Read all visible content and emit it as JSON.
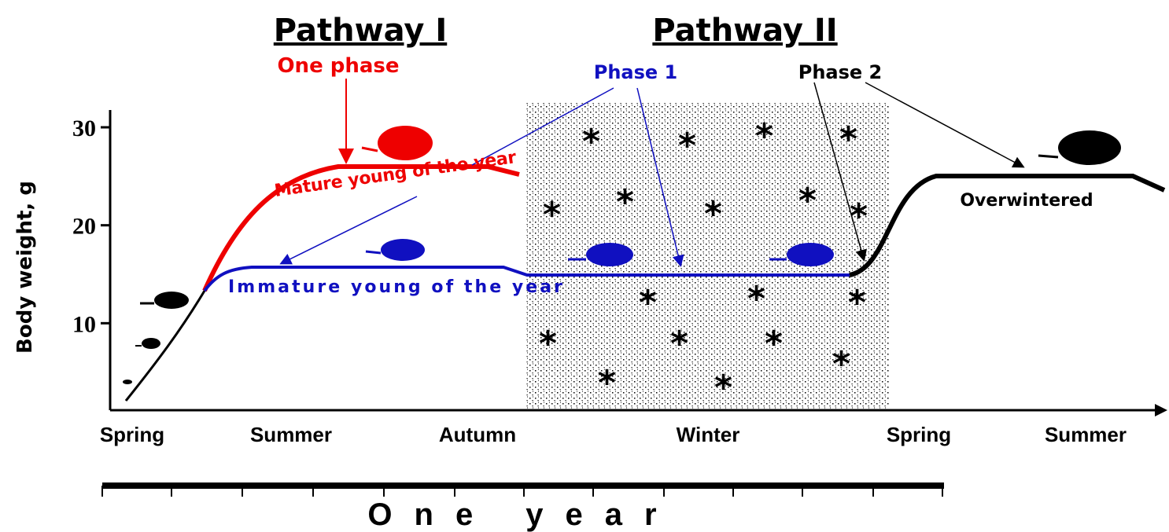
{
  "titles": {
    "pathway_1": "Pathway I",
    "pathway_2": "Pathway II"
  },
  "labels": {
    "one_phase": "One phase",
    "phase_1": "Phase 1",
    "phase_2": "Phase 2",
    "mature": "Mature young of the year",
    "immature": "Immature young of the year",
    "overwintered": "Overwintered"
  },
  "y_axis": {
    "label": "Body weight, g",
    "ticks": [
      10,
      20,
      30
    ],
    "lim": [
      0,
      30
    ]
  },
  "seasons": [
    "Spring",
    "Summer",
    "Autumn",
    "Winter",
    "Spring",
    "Summer"
  ],
  "timeline": "One year"
}
